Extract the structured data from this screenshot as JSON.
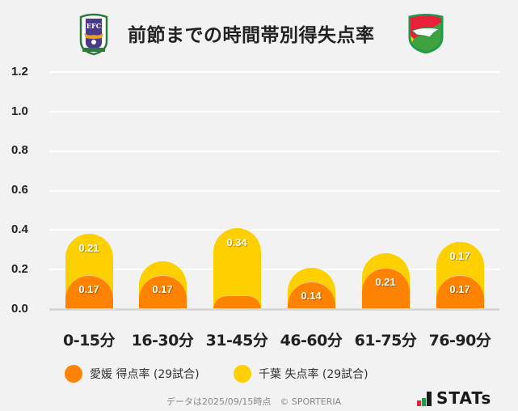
{
  "header": {
    "title": "前節までの時間帯別得失点率",
    "home_logo": "ehime-fc-crest",
    "away_logo": "jef-united-chiba-crest"
  },
  "colors": {
    "home": "#ff8200",
    "away": "#ffd000",
    "background": "#f2f2f2",
    "grid": "#ffffff"
  },
  "chart_data": {
    "type": "bar",
    "stacked": true,
    "title": "前節までの時間帯別得失点率",
    "xlabel": "",
    "ylabel": "",
    "ylim": [
      0,
      1.2
    ],
    "yticks": [
      "1.2",
      "1.0",
      "0.8",
      "0.6",
      "0.4",
      "0.2",
      "0.0"
    ],
    "grid": true,
    "legend_position": "bottom",
    "categories": [
      "0-15分",
      "16-30分",
      "31-45分",
      "46-60分",
      "61-75分",
      "76-90分"
    ],
    "series": [
      {
        "name": "愛媛 得点率 (29試合)",
        "color": "#ff8200",
        "values": [
          0.17,
          0.17,
          0.07,
          0.14,
          0.21,
          0.17
        ],
        "labels": [
          "0.17",
          "0.17",
          "",
          "0.14",
          "0.21",
          "0.17"
        ]
      },
      {
        "name": "千葉 失点率 (29試合)",
        "color": "#ffd000",
        "values": [
          0.21,
          0.07,
          0.34,
          0.07,
          0.07,
          0.17
        ],
        "labels": [
          "0.21",
          "",
          "0.34",
          "",
          "",
          "0.17"
        ]
      }
    ]
  },
  "legend": [
    {
      "label": "愛媛 得点率 (29試合)",
      "color": "#ff8200"
    },
    {
      "label": "千葉 失点率 (29試合)",
      "color": "#ffd000"
    }
  ],
  "footer": {
    "note": "データは2025/09/15時点　© SPORTERIA",
    "brand": "STATs"
  }
}
